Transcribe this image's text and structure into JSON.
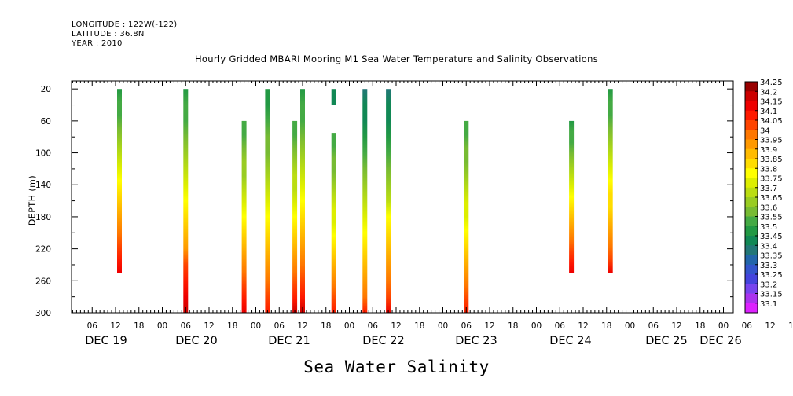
{
  "header": {
    "longitude": "LONGITUDE : 122W(-122)",
    "latitude": "LATITUDE : 36.8N",
    "year": "YEAR : 2010"
  },
  "chart_data": {
    "type": "heatmap",
    "title": "Hourly Gridded MBARI Mooring M1 Sea Water Temperature and Salinity Observations",
    "xlabel": "Sea Water Salinity",
    "ylabel": "DEPTH (m)",
    "y_reversed": true,
    "ylim": [
      300,
      10
    ],
    "yticks": [
      20,
      60,
      100,
      140,
      180,
      220,
      260,
      300
    ],
    "x_hour_ticks": [
      "06",
      "12",
      "18",
      "00",
      "06",
      "12",
      "18",
      "00",
      "06",
      "12",
      "18",
      "00",
      "06",
      "12",
      "18",
      "00",
      "06",
      "12",
      "18",
      "00",
      "06",
      "12",
      "18",
      "00",
      "06",
      "12",
      "18",
      "00",
      "06",
      "12",
      "18",
      "00",
      "06",
      "12",
      "18",
      "00"
    ],
    "x_day_labels": [
      "DEC 19",
      "DEC 20",
      "DEC 21",
      "DEC 22",
      "DEC 23",
      "DEC 24",
      "DEC 25",
      "DEC 26"
    ],
    "colorbar": {
      "labels": [
        "34.25",
        "34.2",
        "34.15",
        "34.1",
        "34.05",
        "34",
        "33.95",
        "33.9",
        "33.85",
        "33.8",
        "33.75",
        "33.7",
        "33.65",
        "33.6",
        "33.55",
        "33.5",
        "33.45",
        "33.4",
        "33.35",
        "33.3",
        "33.25",
        "33.2",
        "33.15",
        "33.1"
      ],
      "colors": [
        "#990000",
        "#cc0000",
        "#ee0000",
        "#ff1a00",
        "#ff4400",
        "#ff7700",
        "#ff9900",
        "#ffbb00",
        "#ffdd00",
        "#ffff00",
        "#ddee00",
        "#bbdd11",
        "#99cc22",
        "#77bb33",
        "#44aa44",
        "#229944",
        "#118855",
        "#227777",
        "#2266aa",
        "#3355cc",
        "#4444dd",
        "#7744ee",
        "#aa33ee",
        "#dd22ff"
      ]
    },
    "columns": [
      {
        "time": "DEC 19 13:00",
        "top_depth": 20,
        "bottom_depth": 250,
        "surface_salinity": 33.52,
        "bottom_salinity": 34.18
      },
      {
        "time": "DEC 20 06:00",
        "top_depth": 20,
        "bottom_depth": 300,
        "surface_salinity": 33.52,
        "bottom_salinity": 34.22
      },
      {
        "time": "DEC 20 21:00",
        "top_depth": 60,
        "bottom_depth": 300,
        "surface_salinity": 33.55,
        "bottom_salinity": 34.15
      },
      {
        "time": "DEC 21 03:00",
        "top_depth": 20,
        "bottom_depth": 300,
        "surface_salinity": 33.5,
        "bottom_salinity": 34.12
      },
      {
        "time": "DEC 21 10:00",
        "top_depth": 60,
        "bottom_depth": 300,
        "surface_salinity": 33.55,
        "bottom_salinity": 34.2
      },
      {
        "time": "DEC 21 12:00",
        "top_depth": 20,
        "bottom_depth": 300,
        "surface_salinity": 33.52,
        "bottom_salinity": 34.2
      },
      {
        "time": "DEC 21 20:00",
        "top_depth": 20,
        "bottom_depth": 40,
        "surface_salinity": 33.45,
        "bottom_salinity": 33.45
      },
      {
        "time": "DEC 21 20:00",
        "top_depth": 75,
        "bottom_depth": 300,
        "surface_salinity": 33.55,
        "bottom_salinity": 34.1
      },
      {
        "time": "DEC 22 04:00",
        "top_depth": 20,
        "bottom_depth": 300,
        "surface_salinity": 33.42,
        "bottom_salinity": 34.1
      },
      {
        "time": "DEC 22 10:00",
        "top_depth": 20,
        "bottom_depth": 300,
        "surface_salinity": 33.42,
        "bottom_salinity": 34.15
      },
      {
        "time": "DEC 23 06:00",
        "top_depth": 60,
        "bottom_depth": 300,
        "surface_salinity": 33.55,
        "bottom_salinity": 34.1
      },
      {
        "time": "DEC 24 09:00",
        "top_depth": 60,
        "bottom_depth": 250,
        "surface_salinity": 33.52,
        "bottom_salinity": 34.18
      },
      {
        "time": "DEC 24 19:00",
        "top_depth": 20,
        "bottom_depth": 250,
        "surface_salinity": 33.52,
        "bottom_salinity": 34.15
      }
    ]
  }
}
